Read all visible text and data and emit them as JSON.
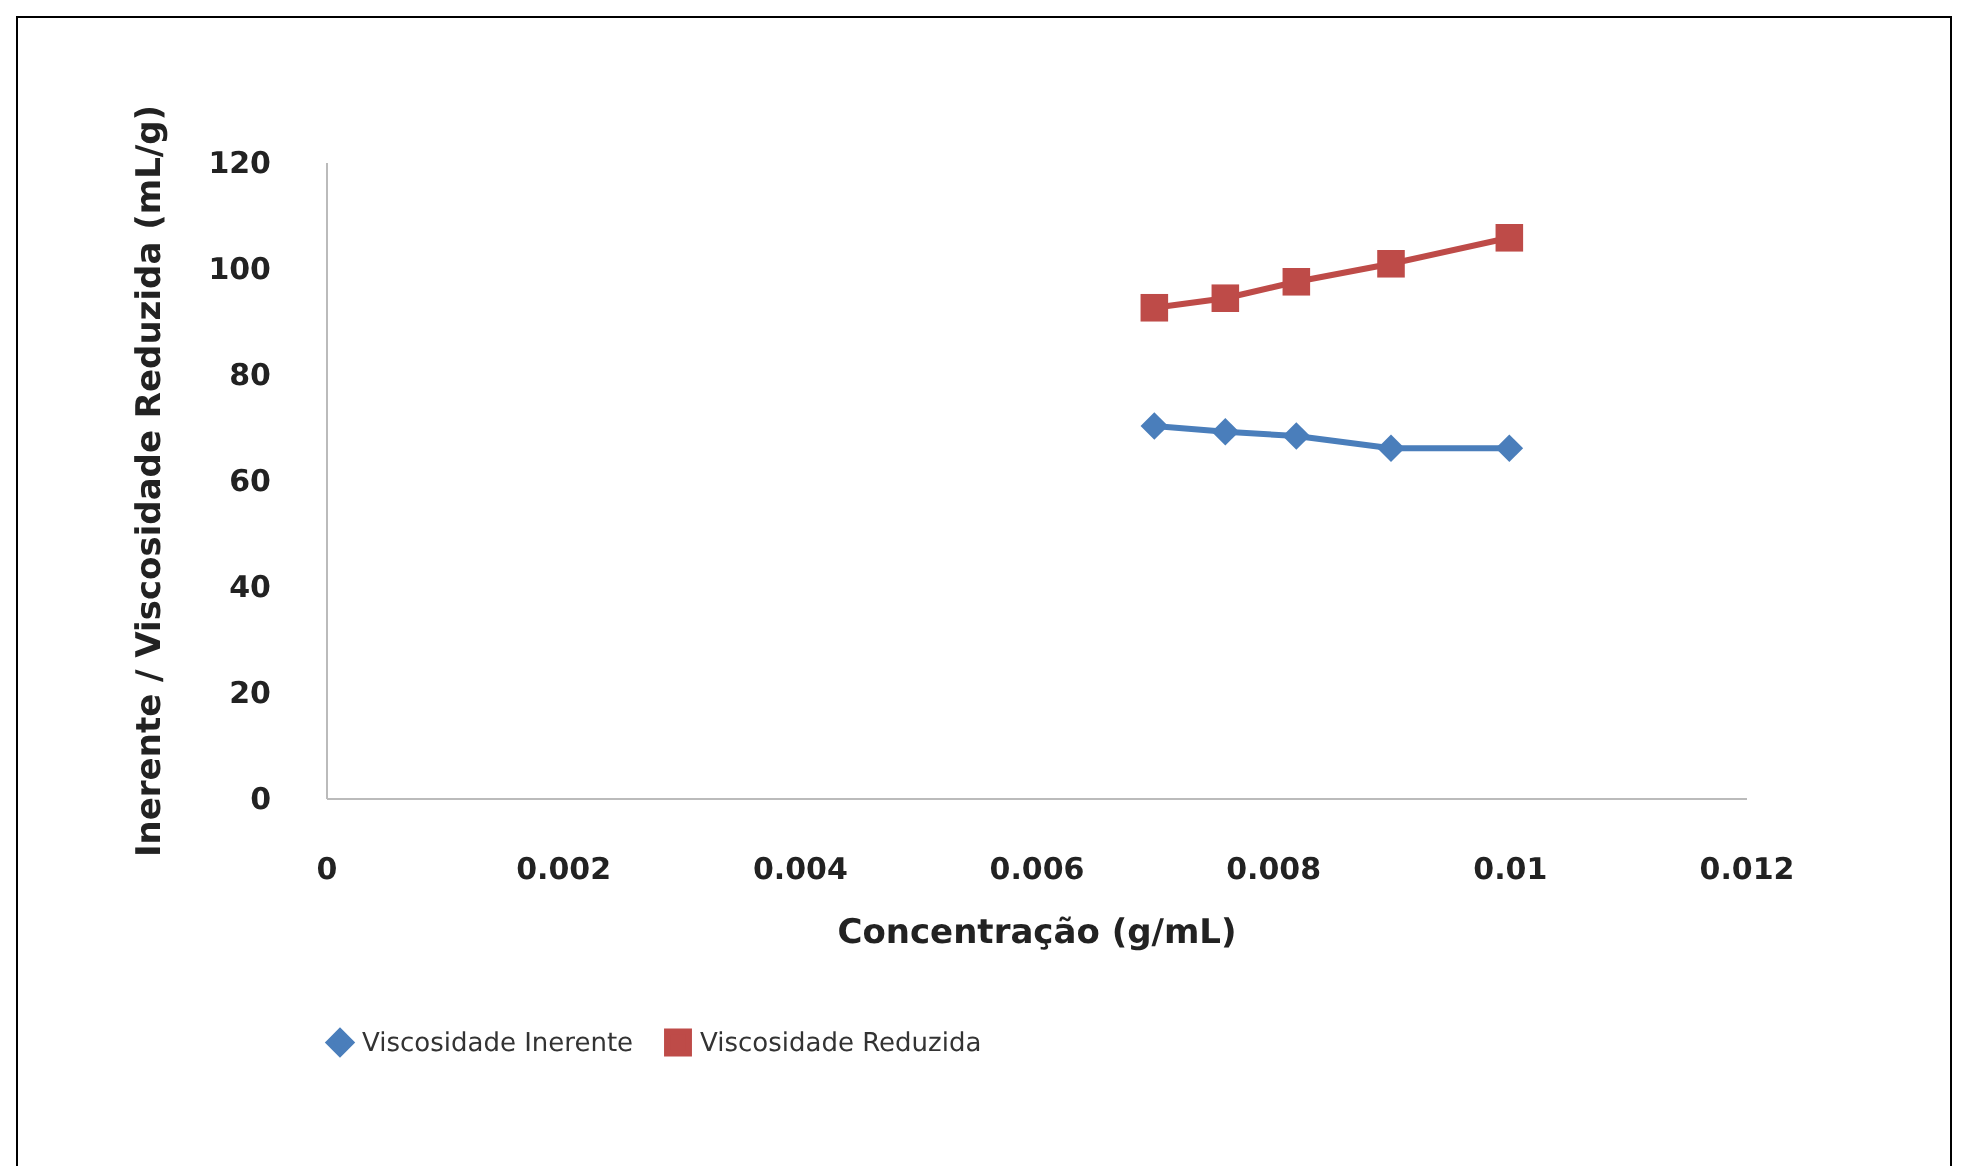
{
  "chart_data": {
    "type": "line",
    "xlabel": "Concentração (g/mL)",
    "ylabel": "Inerente / Viscosidade Reduzida (mL/g)",
    "x": [
      0.007,
      0.0076,
      0.0082,
      0.009,
      0.01
    ],
    "series": [
      {
        "name": "Viscosidade Inerente",
        "color": "#4a7ebb",
        "marker": "diamond",
        "values": [
          70.2,
          69.1,
          68.3,
          66.0,
          66.0
        ]
      },
      {
        "name": "Viscosidade Reduzida",
        "color": "#be4b48",
        "marker": "square",
        "values": [
          92.5,
          94.3,
          97.4,
          100.8,
          105.7
        ]
      }
    ],
    "xlim": [
      0,
      0.012
    ],
    "xticks": [
      0,
      0.002,
      0.004,
      0.006,
      0.008,
      0.01,
      0.012
    ],
    "ylim": [
      0,
      120
    ],
    "yticks": [
      0,
      20,
      40,
      60,
      80,
      100,
      120
    ],
    "grid": false,
    "legend": "bottom"
  }
}
